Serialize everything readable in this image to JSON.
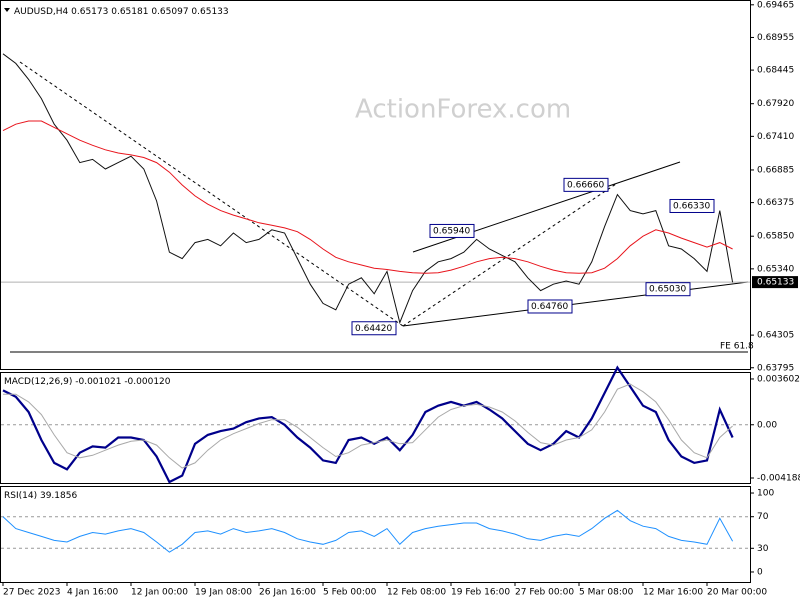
{
  "chart_data": [
    {
      "type": "line",
      "title": "AUDUSD,H4",
      "quote": [
        0.65173,
        0.65181,
        0.65097,
        0.65133
      ],
      "watermark": "ActionForex.com",
      "last": 0.65133,
      "fe_label": "FE 61.8",
      "ylim": [
        0.6376,
        0.6954
      ],
      "yticks": [
        0.69465,
        0.68955,
        0.68445,
        {
          "value": 0.6792,
          "label": "0.67920"
        },
        {
          "value": 0.6741,
          "label": "0.67410"
        },
        0.66885,
        0.66375,
        {
          "value": 0.6585,
          "label": "0.65850"
        },
        {
          "value": 0.6534,
          "label": "0.65340"
        },
        0.64305,
        0.63795
      ],
      "annotations": [
        {
          "value": 0.6442,
          "label": "0.64420"
        },
        {
          "value": 0.6594,
          "label": "0.65940"
        },
        {
          "value": 0.6666,
          "label": "0.66660"
        },
        {
          "value": 0.6476,
          "label": "0.64760"
        },
        {
          "value": 0.6633,
          "label": "0.66330"
        },
        {
          "value": 0.6503,
          "label": "0.65030"
        }
      ],
      "series": [
        {
          "color": "#111111",
          "values": [
            0.687,
            0.6855,
            0.683,
            0.68,
            0.676,
            0.6735,
            0.67,
            0.6705,
            0.669,
            0.67,
            0.671,
            0.669,
            0.664,
            0.656,
            0.655,
            0.6575,
            0.658,
            0.657,
            0.659,
            0.6575,
            0.658,
            0.6595,
            0.659,
            0.655,
            0.651,
            0.648,
            0.647,
            0.651,
            0.652,
            0.6495,
            0.653,
            0.645,
            0.65,
            0.653,
            0.6545,
            0.655,
            0.656,
            0.658,
            0.6565,
            0.6555,
            0.6545,
            0.652,
            0.65,
            0.651,
            0.6515,
            0.651,
            0.6545,
            0.66,
            0.665,
            0.6625,
            0.662,
            0.6625,
            0.657,
            0.6565,
            0.655,
            0.653,
            0.6625,
            0.6513
          ]
        },
        {
          "color": "#e8141c",
          "values": [
            0.675,
            0.676,
            0.6765,
            0.6765,
            0.6755,
            0.6745,
            0.6735,
            0.6727,
            0.672,
            0.6715,
            0.6712,
            0.6708,
            0.67,
            0.6685,
            0.6665,
            0.6648,
            0.6635,
            0.6625,
            0.6618,
            0.6612,
            0.6606,
            0.6602,
            0.6598,
            0.6592,
            0.658,
            0.6565,
            0.6552,
            0.6545,
            0.654,
            0.6535,
            0.6533,
            0.653,
            0.6528,
            0.6527,
            0.6528,
            0.6532,
            0.6538,
            0.6545,
            0.655,
            0.6552,
            0.655,
            0.6545,
            0.6538,
            0.6532,
            0.6528,
            0.6527,
            0.6528,
            0.6535,
            0.655,
            0.657,
            0.6585,
            0.6595,
            0.659,
            0.6582,
            0.6575,
            0.6568,
            0.6575,
            0.6565
          ]
        }
      ]
    },
    {
      "type": "line",
      "title": "MACD(12,26,9)",
      "readout": [
        -0.001021,
        {
          "value": -0.00012,
          "label": "-0.000120"
        }
      ],
      "ylim": [
        -0.00466,
        0.00415
      ],
      "yticks": [
        0.003602,
        {
          "value": 0,
          "label": "0.00"
        },
        -0.004188
      ],
      "series": [
        {
          "color": "#00008b",
          "values": [
            0.0027,
            0.0022,
            0.001,
            -0.0012,
            -0.003,
            -0.0035,
            -0.0022,
            -0.0017,
            -0.0018,
            -0.001,
            -0.001,
            -0.0012,
            -0.0025,
            -0.0045,
            -0.004,
            -0.0015,
            -0.0008,
            -0.0005,
            -0.0003,
            0.0002,
            0.0005,
            0.0006,
            0,
            -0.001,
            -0.0018,
            -0.0028,
            -0.003,
            -0.0012,
            -0.001,
            -0.0015,
            -0.001,
            -0.002,
            -0.0008,
            0.001,
            0.0015,
            0.0018,
            0.0015,
            0.0018,
            0.0012,
            0.0005,
            -0.0005,
            -0.0015,
            -0.002,
            -0.0015,
            -0.0005,
            -0.001,
            0.0005,
            0.0025,
            0.0045,
            0.003,
            0.0015,
            0.001,
            -0.0012,
            -0.0025,
            -0.003,
            -0.0028,
            0.0012,
            -0.001
          ]
        },
        {
          "color": "#a9a9a9",
          "values": [
            0.0024,
            0.0024,
            0.0018,
            0.0008,
            -0.0008,
            -0.0022,
            -0.0026,
            -0.0024,
            -0.002,
            -0.0016,
            -0.0013,
            -0.0012,
            -0.0016,
            -0.0026,
            -0.0034,
            -0.003,
            -0.002,
            -0.0012,
            -0.0007,
            -0.0003,
            0.0001,
            0.0004,
            0.0004,
            -0.0002,
            -0.001,
            -0.0018,
            -0.0025,
            -0.0022,
            -0.0016,
            -0.0014,
            -0.0012,
            -0.0015,
            -0.0014,
            -0.0004,
            0.0006,
            0.0012,
            0.0015,
            0.0016,
            0.0014,
            0.001,
            0.0003,
            -0.0006,
            -0.0014,
            -0.0016,
            -0.0012,
            -0.001,
            -0.0004,
            0.001,
            0.0028,
            0.0032,
            0.0026,
            0.0018,
            0.0004,
            -0.0012,
            -0.0022,
            -0.0026,
            -0.001,
            -0.0001
          ]
        }
      ]
    },
    {
      "type": "line",
      "title": "RSI(14)",
      "readout": [
        39.1856
      ],
      "ylim": [
        -12.7,
        108.9
      ],
      "yticks": [
        100,
        70,
        30,
        0
      ],
      "categories": [
        "27 Dec 2023",
        null,
        null,
        null,
        null,
        "4 Jan 16:00",
        null,
        null,
        null,
        null,
        "12 Jan 00:00",
        null,
        null,
        null,
        null,
        "19 Jan 08:00",
        null,
        null,
        null,
        null,
        "26 Jan 16:00",
        null,
        null,
        null,
        null,
        "5 Feb 00:00",
        null,
        null,
        null,
        null,
        "12 Feb 08:00",
        null,
        null,
        null,
        null,
        "19 Feb 16:00",
        null,
        null,
        null,
        null,
        "27 Feb 00:00",
        null,
        null,
        null,
        null,
        "5 Mar 08:00",
        null,
        null,
        null,
        null,
        "12 Mar 16:00",
        null,
        null,
        null,
        null,
        "20 Mar 00:00",
        null,
        null
      ],
      "series": [
        {
          "color": "#1e90ff",
          "values": [
            70,
            55,
            50,
            45,
            40,
            38,
            45,
            50,
            48,
            52,
            55,
            50,
            38,
            25,
            35,
            50,
            52,
            48,
            55,
            50,
            52,
            55,
            50,
            42,
            38,
            35,
            40,
            50,
            52,
            45,
            55,
            35,
            50,
            55,
            58,
            60,
            62,
            62,
            55,
            52,
            48,
            42,
            40,
            45,
            48,
            45,
            55,
            68,
            78,
            65,
            58,
            55,
            45,
            40,
            38,
            35,
            68,
            39
          ]
        }
      ]
    }
  ]
}
